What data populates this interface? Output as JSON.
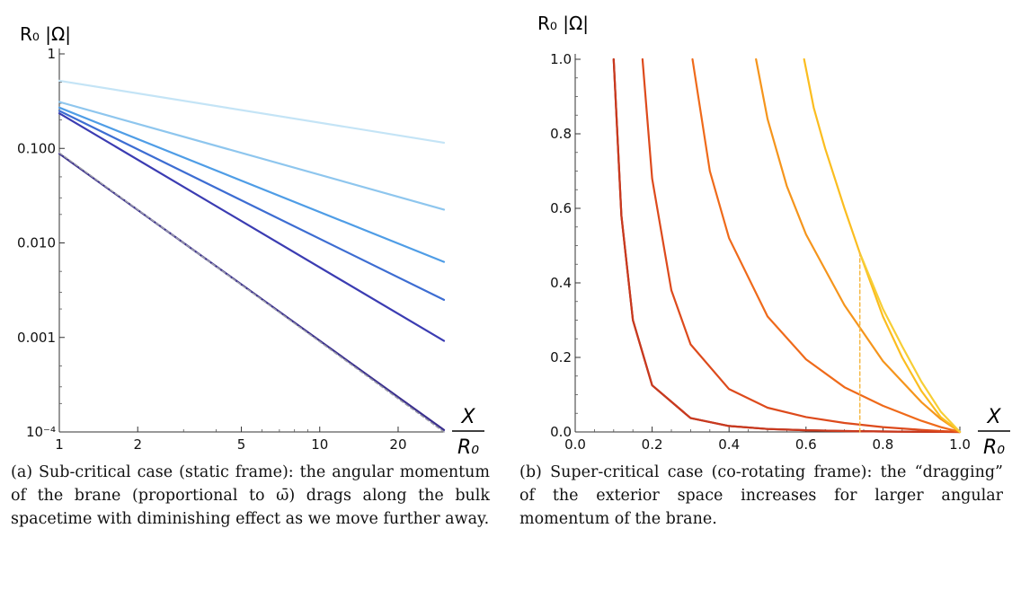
{
  "chart_data": [
    {
      "type": "line",
      "scale": "log-log",
      "ylabel": "R₀ |Ω|",
      "xlabel": "X / R₀",
      "xlim": [
        1,
        30
      ],
      "ylim": [
        0.0001,
        1
      ],
      "xticks": [
        {
          "value": 1,
          "label": "1"
        },
        {
          "value": 2,
          "label": "2"
        },
        {
          "value": 5,
          "label": "5"
        },
        {
          "value": 10,
          "label": "10"
        },
        {
          "value": 20,
          "label": "20"
        }
      ],
      "yticks": [
        {
          "value": 1,
          "label": "1"
        },
        {
          "value": 0.1,
          "label": "0.100"
        },
        {
          "value": 0.01,
          "label": "0.010"
        },
        {
          "value": 0.001,
          "label": "0.001"
        },
        {
          "value": 0.0001,
          "label": "10⁻⁴"
        }
      ],
      "series": [
        {
          "color": "#c4e4f6",
          "x": [
            1,
            30
          ],
          "y": [
            0.52,
            0.115
          ]
        },
        {
          "color": "#8ec6ee",
          "x": [
            1,
            30
          ],
          "y": [
            0.31,
            0.0225
          ]
        },
        {
          "color": "#4f9de6",
          "x": [
            1,
            30
          ],
          "y": [
            0.27,
            0.0063
          ]
        },
        {
          "color": "#3d6dd2",
          "x": [
            1,
            30
          ],
          "y": [
            0.25,
            0.0025
          ]
        },
        {
          "color": "#3b3cb2",
          "x": [
            1,
            30
          ],
          "y": [
            0.235,
            0.00092
          ]
        },
        {
          "color": "#3a2f8e",
          "x": [
            1,
            30
          ],
          "y": [
            0.088,
            0.000105
          ]
        },
        {
          "color": "#9a9aa8",
          "dashed": true,
          "x": [
            1,
            30
          ],
          "y": [
            0.09,
            0.0001
          ]
        }
      ]
    },
    {
      "type": "line",
      "ylabel": "R₀ |Ω|",
      "xlabel": "X / R₀",
      "xlim": [
        0,
        1
      ],
      "ylim": [
        0,
        1
      ],
      "xticks": [
        {
          "value": 0.0,
          "label": "0.0"
        },
        {
          "value": 0.2,
          "label": "0.2"
        },
        {
          "value": 0.4,
          "label": "0.4"
        },
        {
          "value": 0.6,
          "label": "0.6"
        },
        {
          "value": 0.8,
          "label": "0.8"
        },
        {
          "value": 1.0,
          "label": "1.0"
        }
      ],
      "yticks": [
        {
          "value": 0.0,
          "label": "0.0"
        },
        {
          "value": 0.2,
          "label": "0.2"
        },
        {
          "value": 0.4,
          "label": "0.4"
        },
        {
          "value": 0.6,
          "label": "0.6"
        },
        {
          "value": 0.8,
          "label": "0.8"
        },
        {
          "value": 1.0,
          "label": "1.0"
        }
      ],
      "series": [
        {
          "color": "#9c2a1a",
          "x": [
            0.1,
            0.12,
            0.15,
            0.2,
            0.3,
            0.4,
            0.5,
            0.6,
            0.7,
            0.8,
            0.9,
            0.95,
            1.0
          ],
          "y": [
            1.0,
            0.58,
            0.3,
            0.125,
            0.037,
            0.016,
            0.008,
            0.0045,
            0.0025,
            0.0013,
            0.0005,
            0.0002,
            0.0
          ]
        },
        {
          "color": "#c9391e",
          "x": [
            0.1,
            0.12,
            0.15,
            0.2,
            0.3,
            0.4,
            0.5,
            0.6,
            0.7,
            0.8,
            0.9,
            0.95,
            1.0
          ],
          "y": [
            1.0,
            0.58,
            0.3,
            0.125,
            0.037,
            0.016,
            0.008,
            0.0045,
            0.0025,
            0.0013,
            0.0005,
            0.0002,
            0.0
          ]
        },
        {
          "color": "#dd4a1c",
          "x": [
            0.175,
            0.2,
            0.25,
            0.3,
            0.4,
            0.5,
            0.6,
            0.7,
            0.8,
            0.9,
            0.95,
            1.0
          ],
          "y": [
            1.0,
            0.68,
            0.38,
            0.235,
            0.115,
            0.065,
            0.04,
            0.024,
            0.013,
            0.0055,
            0.0025,
            0.0
          ]
        },
        {
          "color": "#ef6a1a",
          "x": [
            0.305,
            0.35,
            0.4,
            0.5,
            0.6,
            0.7,
            0.8,
            0.9,
            0.95,
            1.0
          ],
          "y": [
            1.0,
            0.7,
            0.52,
            0.31,
            0.195,
            0.12,
            0.07,
            0.03,
            0.013,
            0.0
          ]
        },
        {
          "color": "#f5951c",
          "x": [
            0.47,
            0.5,
            0.55,
            0.6,
            0.7,
            0.8,
            0.9,
            0.95,
            1.0
          ],
          "y": [
            1.0,
            0.84,
            0.66,
            0.53,
            0.34,
            0.19,
            0.08,
            0.035,
            0.0
          ]
        },
        {
          "color": "#fbbd1f",
          "x": [
            0.595,
            0.62,
            0.65,
            0.7,
            0.74,
            0.8,
            0.85,
            0.9,
            0.95,
            1.0
          ],
          "y": [
            1.0,
            0.87,
            0.76,
            0.6,
            0.48,
            0.31,
            0.2,
            0.11,
            0.04,
            0.0
          ]
        },
        {
          "color": "#f7ce35",
          "x": [
            0.74,
            0.8,
            0.85,
            0.9,
            0.95,
            1.0
          ],
          "y": [
            0.48,
            0.33,
            0.23,
            0.135,
            0.055,
            0.0
          ]
        },
        {
          "color": "#f6b945",
          "dashed": true,
          "x": [
            0.74,
            0.74
          ],
          "y": [
            0.0,
            0.48
          ]
        }
      ]
    }
  ],
  "captions": {
    "a": "(a) Sub-critical case (static frame): the angular momentum of the brane (proportional to ω̄) drags along the bulk spacetime with diminishing effect as we move further away.",
    "b": "(b) Super-critical case (co-rotating frame): the “dragging” of the exterior space increases for larger angular momentum of the brane."
  },
  "labels": {
    "y_main": "R₀ |Ω|",
    "x_num": "X",
    "x_den": "R₀"
  }
}
